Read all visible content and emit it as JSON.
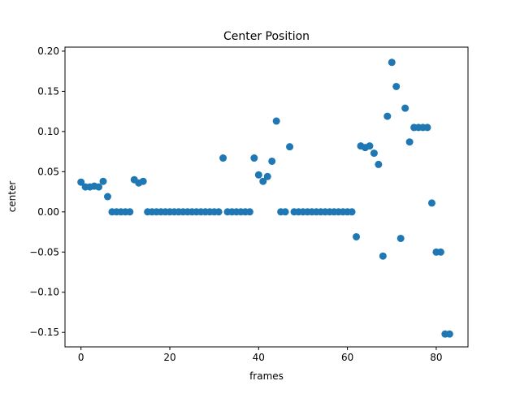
{
  "chart_data": {
    "type": "scatter",
    "title": "Center Position",
    "xlabel": "frames",
    "ylabel": "center",
    "xlim": [
      -3.6,
      87.15
    ],
    "ylim": [
      -0.168,
      0.205
    ],
    "x_ticks": [
      0,
      20,
      40,
      60,
      80
    ],
    "x_tick_labels": [
      "0",
      "20",
      "40",
      "60",
      "80"
    ],
    "y_ticks": [
      0.2,
      0.15,
      0.1,
      0.05,
      0.0,
      -0.05,
      -0.1,
      -0.15
    ],
    "y_tick_labels": [
      "0.20",
      "0.15",
      "0.10",
      "0.05",
      "0.00",
      "−0.05",
      "−0.10",
      "−0.15"
    ],
    "grid": false,
    "marker_color": "#1f77b4",
    "series": [
      {
        "x": [
          0,
          1,
          2,
          3,
          4,
          5,
          6,
          7,
          8,
          9,
          10,
          11,
          12,
          13,
          14,
          15,
          16,
          17,
          18,
          19,
          20,
          21,
          22,
          23,
          24,
          25,
          26,
          27,
          28,
          29,
          30,
          31,
          32,
          33,
          34,
          35,
          36,
          37,
          38,
          39,
          40,
          41,
          42,
          43,
          44,
          45,
          46,
          47,
          48,
          49,
          50,
          51,
          52,
          53,
          54,
          55,
          56,
          57,
          58,
          59,
          60,
          61,
          62,
          63,
          64,
          65,
          66,
          67,
          68,
          69,
          70,
          71,
          72,
          73,
          74,
          75,
          76,
          77,
          78,
          79,
          80,
          81,
          82,
          83
        ],
        "y": [
          0.037,
          0.031,
          0.031,
          0.032,
          0.031,
          0.038,
          0.019,
          0.0,
          0.0,
          0.0,
          0.0,
          0.0,
          0.04,
          0.036,
          0.038,
          0.0,
          0.0,
          0.0,
          0.0,
          0.0,
          0.0,
          0.0,
          0.0,
          0.0,
          0.0,
          0.0,
          0.0,
          0.0,
          0.0,
          0.0,
          0.0,
          0.0,
          0.067,
          0.0,
          0.0,
          0.0,
          0.0,
          0.0,
          0.0,
          0.067,
          0.046,
          0.038,
          0.044,
          0.063,
          0.113,
          0.0,
          0.0,
          0.081,
          0.0,
          0.0,
          0.0,
          0.0,
          0.0,
          0.0,
          0.0,
          0.0,
          0.0,
          0.0,
          0.0,
          0.0,
          0.0,
          0.0,
          -0.031,
          0.082,
          0.08,
          0.082,
          0.073,
          0.059,
          -0.055,
          0.119,
          0.186,
          0.156,
          -0.033,
          0.129,
          0.087,
          0.105,
          0.105,
          0.105,
          0.105,
          0.011,
          -0.05,
          -0.05,
          -0.152,
          -0.152
        ]
      }
    ]
  }
}
